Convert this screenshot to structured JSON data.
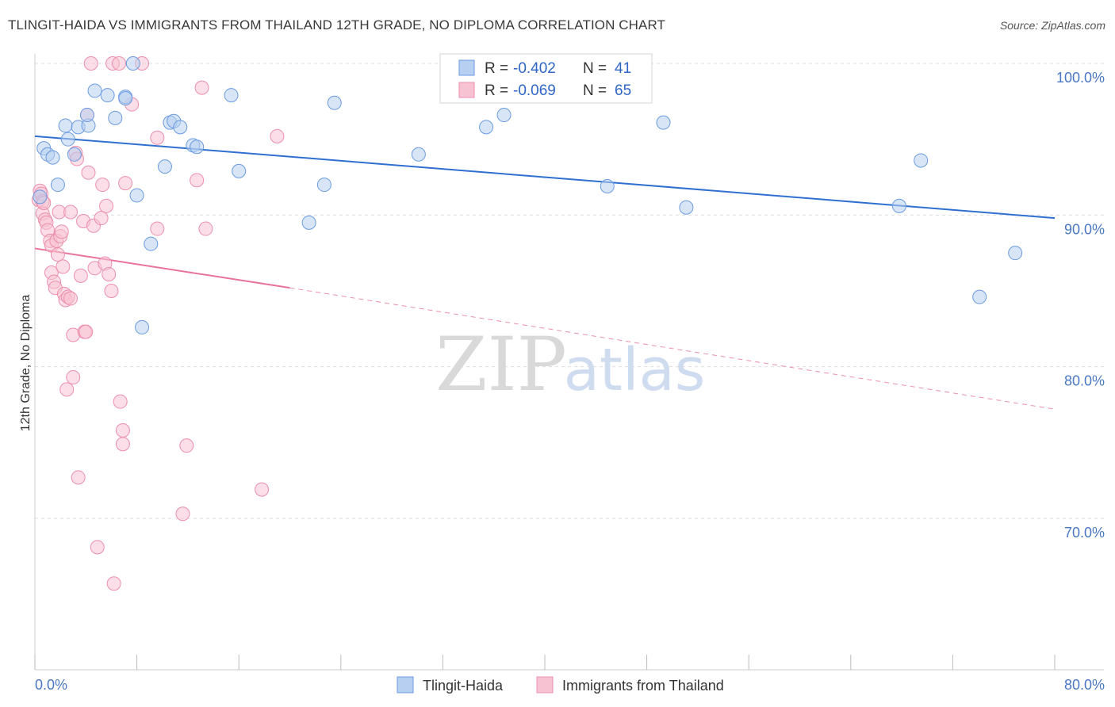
{
  "title": "TLINGIT-HAIDA VS IMMIGRANTS FROM THAILAND 12TH GRADE, NO DIPLOMA CORRELATION CHART",
  "source": "Source: ZipAtlas.com",
  "watermark": {
    "zip": "ZIP",
    "atlas": "atlas"
  },
  "legend": {
    "rows": [
      {
        "r_label": "R =",
        "r_value": "-0.402",
        "n_label": "N =",
        "n_value": "41"
      },
      {
        "r_label": "R =",
        "r_value": "-0.069",
        "n_label": "N =",
        "n_value": "65"
      }
    ]
  },
  "bottom_legend": [
    "Tlingit-Haida",
    "Immigrants from Thailand"
  ],
  "colors": {
    "blue_fill": "#b7cff0",
    "blue_stroke": "#6b9be0",
    "blue_line": "#2f6fd0",
    "pink_fill": "#f7c3d3",
    "pink_stroke": "#ec8fac",
    "pink_line": "#e8739a",
    "tick_text": "#4a78c2",
    "grid": "#dddddd"
  },
  "chart_data": {
    "type": "scatter",
    "title": "TLINGIT-HAIDA VS IMMIGRANTS FROM THAILAND 12TH GRADE, NO DIPLOMA CORRELATION CHART",
    "xlabel": "",
    "ylabel": "12th Grade, No Diploma",
    "xlim": [
      0,
      80
    ],
    "ylim": [
      60,
      104
    ],
    "x_ticks": [
      "0.0%",
      "80.0%"
    ],
    "y_ticks": [
      {
        "value": 100,
        "label": "100.0%"
      },
      {
        "value": 90,
        "label": "90.0%"
      },
      {
        "value": 80,
        "label": "80.0%"
      },
      {
        "value": 70,
        "label": "70.0%"
      }
    ],
    "grid": true,
    "legend_position": "top-center",
    "series": [
      {
        "name": "Tlingit-Haida",
        "color": "#6b9be0",
        "trend": {
          "x": [
            0,
            80
          ],
          "y": [
            95.2,
            89.8
          ],
          "style": "solid"
        },
        "points": [
          [
            0.4,
            91.2
          ],
          [
            0.7,
            94.4
          ],
          [
            1.0,
            94.0
          ],
          [
            1.4,
            93.8
          ],
          [
            1.8,
            92.0
          ],
          [
            2.4,
            95.9
          ],
          [
            2.6,
            95.0
          ],
          [
            3.1,
            94.0
          ],
          [
            3.4,
            95.8
          ],
          [
            4.2,
            95.9
          ],
          [
            4.1,
            96.6
          ],
          [
            4.7,
            98.2
          ],
          [
            5.7,
            97.9
          ],
          [
            6.3,
            96.4
          ],
          [
            7.1,
            97.8
          ],
          [
            7.1,
            97.7
          ],
          [
            7.7,
            100.0
          ],
          [
            8.0,
            91.3
          ],
          [
            8.4,
            82.6
          ],
          [
            9.1,
            88.1
          ],
          [
            10.2,
            93.2
          ],
          [
            10.6,
            96.1
          ],
          [
            10.9,
            96.2
          ],
          [
            11.4,
            95.8
          ],
          [
            12.4,
            94.6
          ],
          [
            12.7,
            94.5
          ],
          [
            15.4,
            97.9
          ],
          [
            16.0,
            92.9
          ],
          [
            21.5,
            89.5
          ],
          [
            22.7,
            92.0
          ],
          [
            23.5,
            97.4
          ],
          [
            30.1,
            94.0
          ],
          [
            35.4,
            95.8
          ],
          [
            36.8,
            96.6
          ],
          [
            44.9,
            91.9
          ],
          [
            51.1,
            90.5
          ],
          [
            49.3,
            96.1
          ],
          [
            67.8,
            90.6
          ],
          [
            69.5,
            93.6
          ],
          [
            74.1,
            84.6
          ],
          [
            76.9,
            87.5
          ]
        ]
      },
      {
        "name": "Immigrants from Thailand",
        "color": "#ec8fac",
        "trend": {
          "x": [
            0,
            20
          ],
          "y": [
            87.8,
            85.2
          ],
          "style": "solid",
          "dashed_extension": {
            "x": [
              20,
              80
            ],
            "y": [
              85.2,
              77.2
            ]
          }
        },
        "points": [
          [
            0.3,
            91.0
          ],
          [
            0.4,
            91.6
          ],
          [
            0.5,
            91.4
          ],
          [
            0.6,
            90.9
          ],
          [
            0.6,
            90.1
          ],
          [
            0.7,
            90.8
          ],
          [
            0.8,
            89.7
          ],
          [
            0.9,
            89.5
          ],
          [
            1.0,
            89.0
          ],
          [
            1.2,
            88.3
          ],
          [
            1.3,
            88.0
          ],
          [
            1.3,
            86.2
          ],
          [
            1.5,
            85.6
          ],
          [
            1.6,
            85.2
          ],
          [
            1.7,
            88.3
          ],
          [
            1.8,
            87.4
          ],
          [
            1.9,
            90.2
          ],
          [
            2.0,
            88.6
          ],
          [
            2.1,
            88.9
          ],
          [
            2.2,
            86.6
          ],
          [
            2.3,
            84.8
          ],
          [
            2.4,
            84.4
          ],
          [
            2.5,
            78.5
          ],
          [
            2.6,
            84.6
          ],
          [
            2.8,
            90.2
          ],
          [
            2.8,
            84.5
          ],
          [
            3.0,
            82.1
          ],
          [
            3.0,
            79.3
          ],
          [
            3.2,
            94.1
          ],
          [
            3.3,
            93.7
          ],
          [
            3.4,
            72.7
          ],
          [
            3.6,
            86.0
          ],
          [
            3.8,
            89.6
          ],
          [
            3.9,
            82.3
          ],
          [
            4.0,
            82.3
          ],
          [
            4.1,
            96.6
          ],
          [
            4.2,
            92.8
          ],
          [
            4.4,
            100.0
          ],
          [
            4.6,
            89.3
          ],
          [
            4.7,
            86.5
          ],
          [
            4.9,
            68.1
          ],
          [
            5.2,
            89.8
          ],
          [
            5.3,
            92.0
          ],
          [
            5.5,
            86.8
          ],
          [
            5.6,
            90.6
          ],
          [
            5.8,
            86.1
          ],
          [
            6.0,
            85.0
          ],
          [
            6.1,
            100.0
          ],
          [
            6.2,
            65.7
          ],
          [
            6.6,
            100.0
          ],
          [
            6.7,
            77.7
          ],
          [
            6.9,
            75.8
          ],
          [
            6.9,
            74.9
          ],
          [
            7.1,
            92.1
          ],
          [
            7.6,
            97.3
          ],
          [
            8.4,
            100.0
          ],
          [
            9.6,
            95.1
          ],
          [
            9.6,
            89.1
          ],
          [
            11.6,
            70.3
          ],
          [
            11.9,
            74.8
          ],
          [
            12.7,
            92.3
          ],
          [
            13.1,
            98.4
          ],
          [
            13.4,
            89.1
          ],
          [
            17.8,
            71.9
          ],
          [
            19.0,
            95.2
          ]
        ]
      }
    ]
  }
}
